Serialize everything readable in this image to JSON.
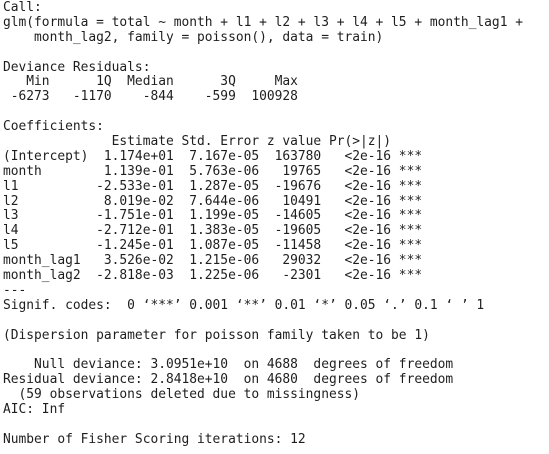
{
  "blocks": [
    {
      "lines": [
        "Call:",
        "glm(formula = total ~ month + l1 + l2 + l3 + l4 + l5 + month_lag1 +",
        "    month_lag2, family = poisson(), data = train)"
      ]
    },
    {
      "lines": [
        "Deviance Residuals:",
        "   Min      1Q  Median      3Q     Max",
        " -6273   -1170    -844    -599  100928"
      ]
    },
    {
      "lines": [
        "Coefficients:",
        "              Estimate Std. Error z value Pr(>|z|)",
        "(Intercept)  1.174e+01  7.167e-05  163780   <2e-16 ***",
        "month        1.139e-01  5.763e-06   19765   <2e-16 ***",
        "l1          -2.533e-01  1.287e-05  -19676   <2e-16 ***",
        "l2           8.019e-02  7.644e-06   10491   <2e-16 ***",
        "l3          -1.751e-01  1.199e-05  -14605   <2e-16 ***",
        "l4          -2.712e-01  1.383e-05  -19605   <2e-16 ***",
        "l5          -1.245e-01  1.087e-05  -11458   <2e-16 ***",
        "month_lag1   3.526e-02  1.215e-06   29032   <2e-16 ***",
        "month_lag2  -2.818e-03  1.225e-06   -2301   <2e-16 ***",
        "---",
        "Signif. codes:  0 ‘***’ 0.001 ‘**’ 0.01 ‘*’ 0.05 ‘.’ 0.1 ‘ ’ 1"
      ]
    },
    {
      "lines": [
        "(Dispersion parameter for poisson family taken to be 1)"
      ]
    },
    {
      "lines": [
        "    Null deviance: 3.0951e+10  on 4688  degrees of freedom",
        "Residual deviance: 2.8418e+10  on 4680  degrees of freedom",
        "  (59 observations deleted due to missingness)",
        "AIC: Inf"
      ]
    },
    {
      "lines": [
        "Number of Fisher Scoring iterations: 12"
      ]
    }
  ]
}
